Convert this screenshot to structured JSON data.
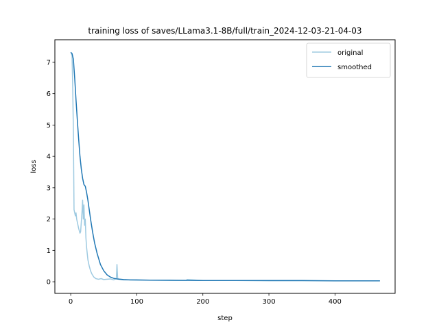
{
  "chart_data": {
    "type": "line",
    "title": "training loss of saves/LLama3.1-8B/full/train_2024-12-03-21-04-03",
    "xlabel": "step",
    "ylabel": "loss",
    "xlim": [
      -24,
      491
    ],
    "ylim": [
      -0.37,
      7.72
    ],
    "xticks": [
      0,
      100,
      200,
      300,
      400
    ],
    "yticks": [
      0,
      1,
      2,
      3,
      4,
      5,
      6,
      7
    ],
    "grid": false,
    "legend_position": "top-right",
    "series": [
      {
        "name": "original",
        "color": "#9ecae1",
        "x": [
          1,
          2,
          3,
          4,
          5,
          6,
          7,
          8,
          9,
          10,
          12,
          14,
          15,
          16,
          17,
          18,
          19,
          20,
          21,
          22,
          23,
          24,
          25,
          26,
          28,
          30,
          32,
          35,
          38,
          42,
          46,
          50,
          55,
          60,
          65,
          69,
          70,
          71,
          72,
          75,
          80,
          90,
          100,
          120,
          150,
          175,
          176,
          200,
          250,
          300,
          350,
          400,
          450,
          468
        ],
        "y": [
          7.3,
          7.2,
          6.2,
          4.8,
          2.3,
          2.2,
          2.1,
          2.2,
          2.0,
          1.9,
          1.7,
          1.55,
          1.6,
          1.9,
          2.2,
          2.6,
          2.0,
          2.45,
          1.8,
          2.0,
          1.4,
          1.1,
          0.9,
          0.7,
          0.5,
          0.35,
          0.25,
          0.15,
          0.1,
          0.08,
          0.1,
          0.07,
          0.08,
          0.09,
          0.06,
          0.1,
          0.55,
          0.12,
          0.08,
          0.07,
          0.06,
          0.06,
          0.05,
          0.05,
          0.04,
          0.04,
          0.07,
          0.04,
          0.04,
          0.03,
          0.03,
          0.03,
          0.03,
          0.03
        ]
      },
      {
        "name": "smoothed",
        "color": "#1f77b4",
        "x": [
          0,
          2,
          4,
          6,
          8,
          10,
          12,
          14,
          16,
          18,
          20,
          22,
          24,
          26,
          28,
          30,
          33,
          36,
          40,
          45,
          50,
          55,
          60,
          65,
          70,
          75,
          80,
          90,
          100,
          120,
          150,
          200,
          250,
          300,
          350,
          400,
          450,
          468
        ],
        "y": [
          7.32,
          7.28,
          7.1,
          6.5,
          5.8,
          5.15,
          4.55,
          4.0,
          3.6,
          3.3,
          3.1,
          3.05,
          2.85,
          2.6,
          2.3,
          2.0,
          1.6,
          1.25,
          0.9,
          0.55,
          0.35,
          0.22,
          0.15,
          0.11,
          0.09,
          0.08,
          0.07,
          0.06,
          0.06,
          0.05,
          0.05,
          0.04,
          0.04,
          0.04,
          0.04,
          0.03,
          0.03,
          0.03
        ]
      }
    ]
  }
}
